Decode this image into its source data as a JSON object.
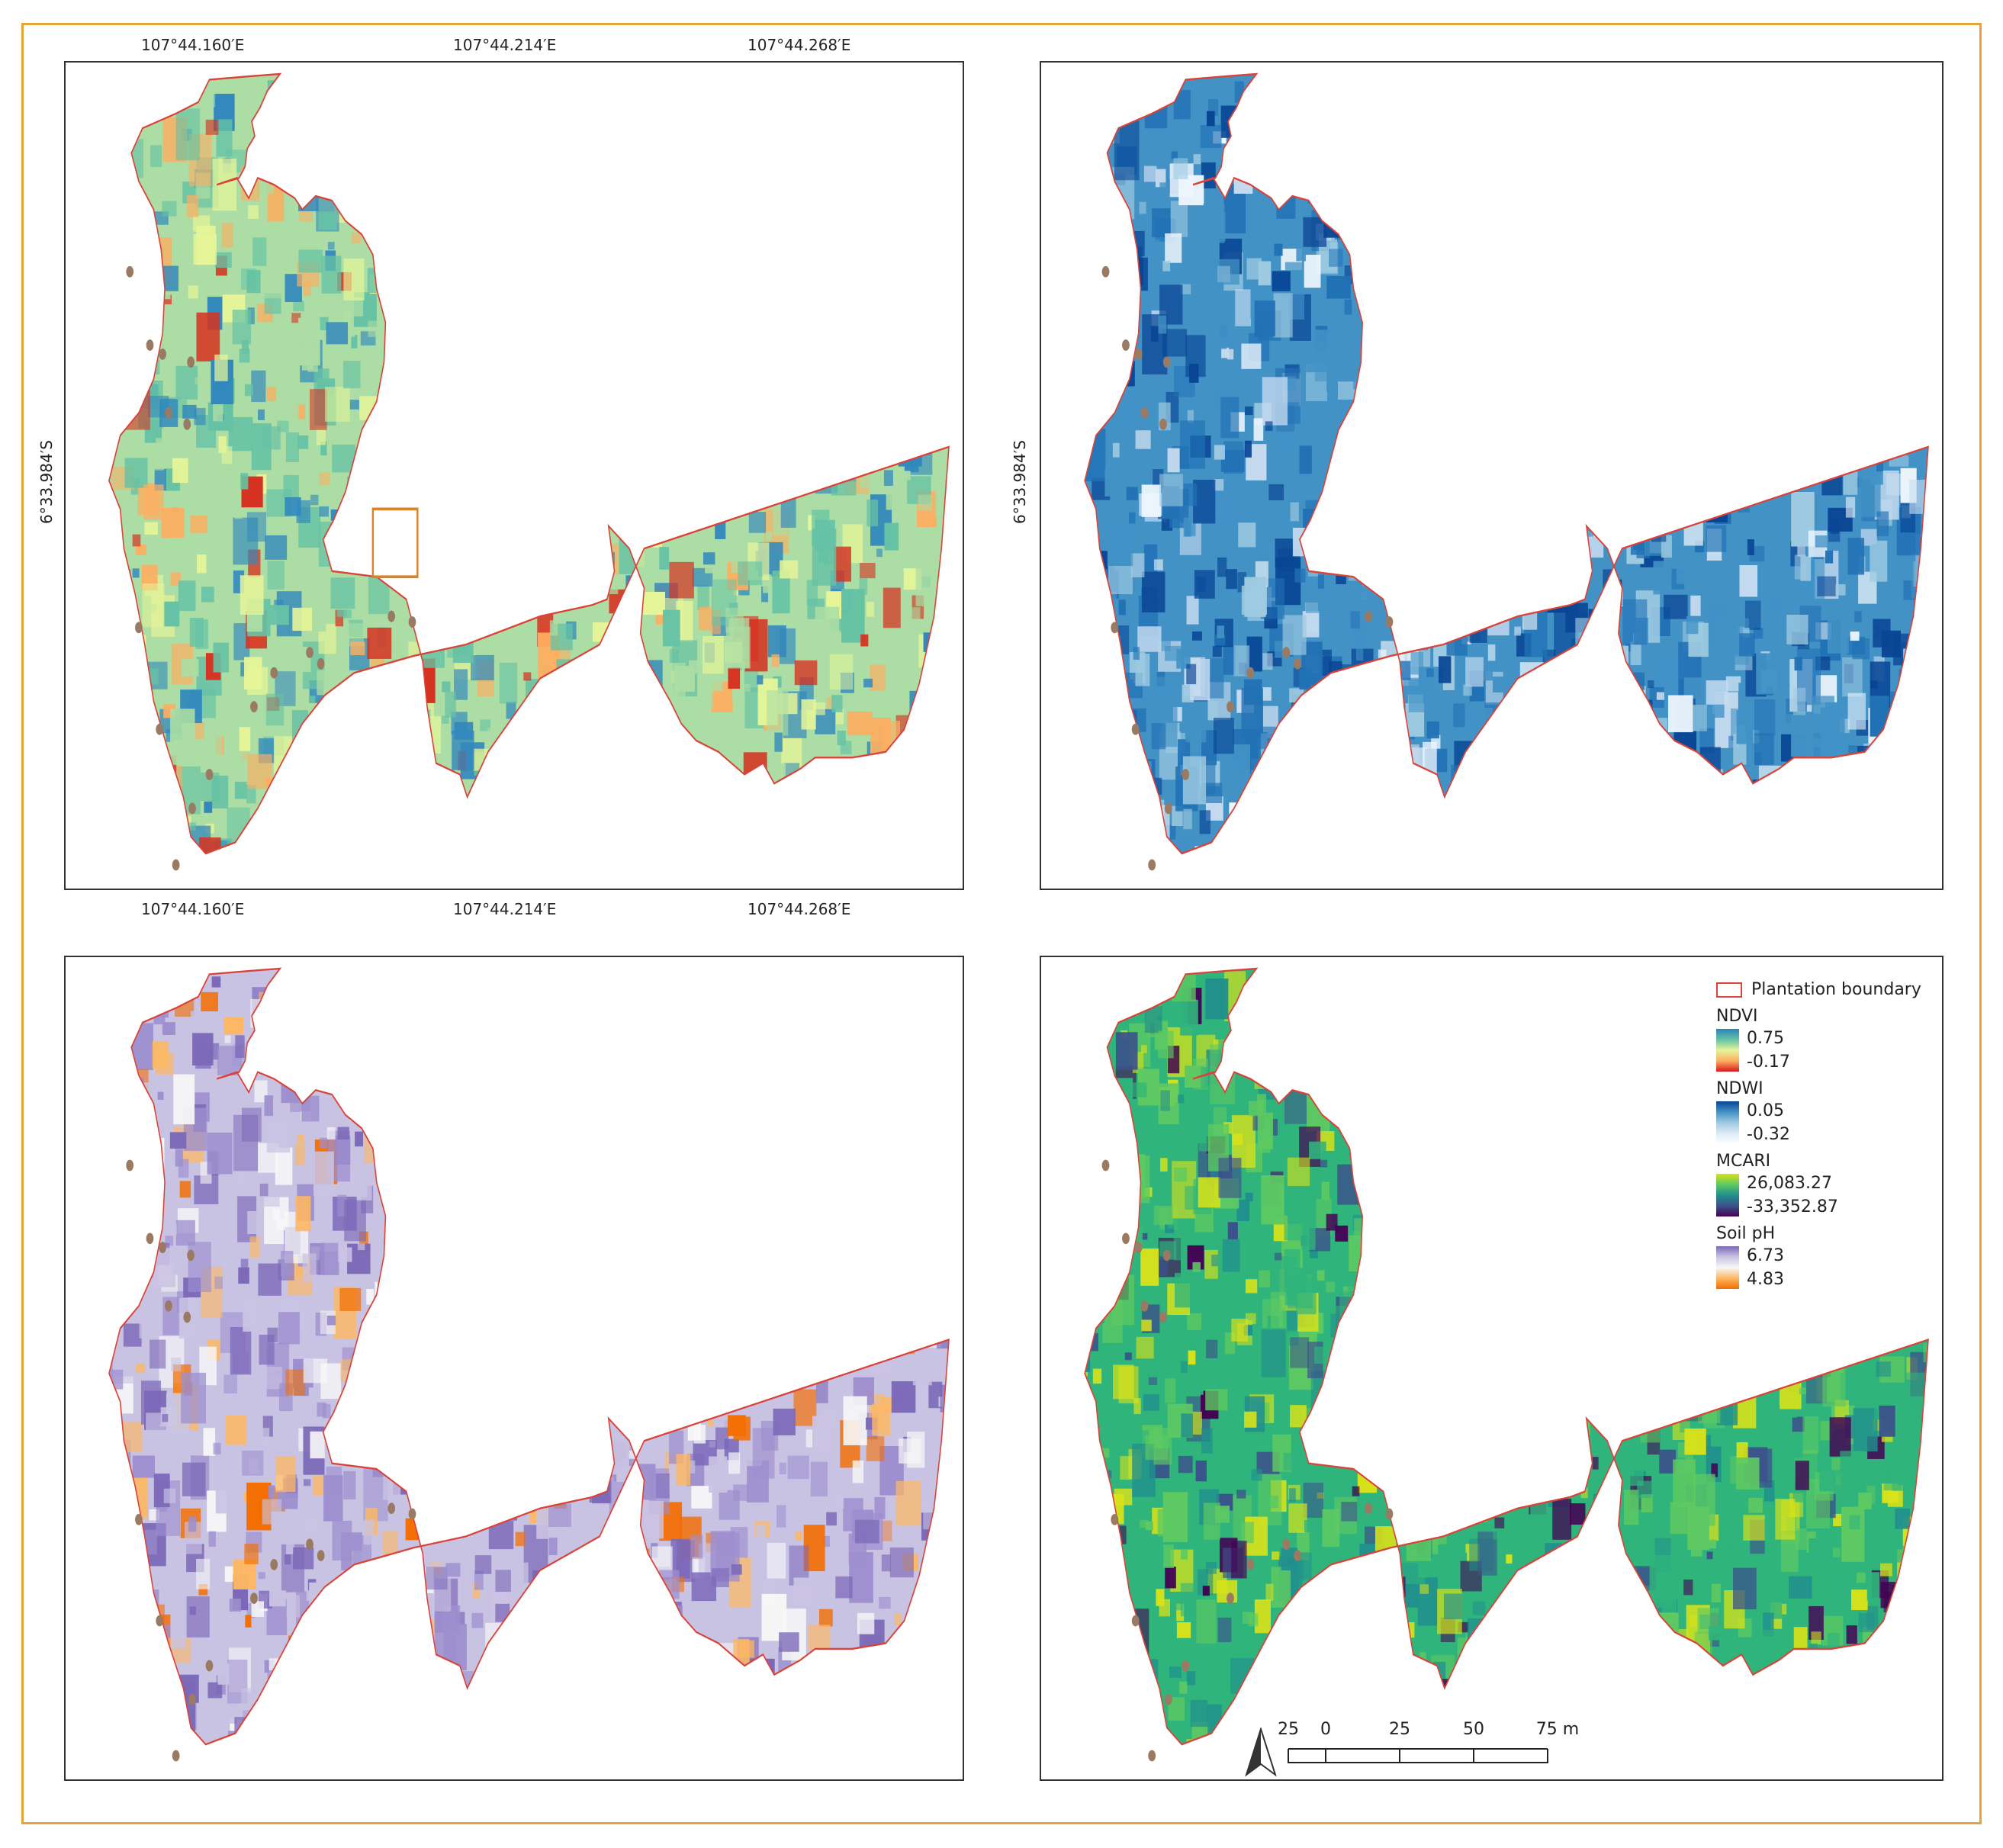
{
  "figure": {
    "border_color": "#e8a23a",
    "coordinates": {
      "top_lon": [
        "107°44.160′E",
        "107°44.214′E",
        "107°44.268′E"
      ],
      "bottom_lon": [
        "107°44.160′E",
        "107°44.214′E",
        "107°44.268′E"
      ],
      "left_lat": "6°33.984′S",
      "right_lat": "6°33.984′S"
    },
    "panels": [
      {
        "layer": "NDVI",
        "colors": [
          "#d7301f",
          "#fdae61",
          "#e6f598",
          "#abdda4",
          "#66c2a5",
          "#3288bd"
        ]
      },
      {
        "layer": "NDWI",
        "colors": [
          "#eef6fc",
          "#c6dbef",
          "#9ecae1",
          "#4292c6",
          "#2171b5",
          "#084594"
        ]
      },
      {
        "layer": "Soil pH",
        "colors": [
          "#f46d00",
          "#fdb863",
          "#f7f7f7",
          "#c9c3e3",
          "#9d8fcf",
          "#7b68b8"
        ]
      },
      {
        "layer": "MCARI",
        "colors": [
          "#440154",
          "#3b528b",
          "#21908d",
          "#2fb47c",
          "#5ec962",
          "#d8e219"
        ]
      }
    ],
    "sample_point_color": "#9a7a62",
    "boundary_color": "#d9433a",
    "highlight_box_color": "#d9832a"
  },
  "legend": {
    "boundary_label": "Plantation boundary",
    "items": [
      {
        "title": "NDVI",
        "max": "0.75",
        "min": "-0.17",
        "colors": [
          "#2b83ba",
          "#66c2a5",
          "#e6f598",
          "#fdae61",
          "#d7191c"
        ]
      },
      {
        "title": "NDWI",
        "max": "0.05",
        "min": "-0.32",
        "colors": [
          "#084594",
          "#4292c6",
          "#9ecae1",
          "#deebf7",
          "#ffffff"
        ]
      },
      {
        "title": "MCARI",
        "max": "26,083.27",
        "min": "-33,352.87",
        "colors": [
          "#d8e219",
          "#5ec962",
          "#21908d",
          "#3b528b",
          "#440154"
        ]
      },
      {
        "title": "Soil pH",
        "max": "6.73",
        "min": "4.83",
        "colors": [
          "#7b68b8",
          "#c9c3e3",
          "#f7f7f7",
          "#fdb863",
          "#f46d00"
        ]
      }
    ]
  },
  "scalebar": {
    "labels": [
      "25",
      "0",
      "25",
      "50",
      "75 m"
    ]
  }
}
